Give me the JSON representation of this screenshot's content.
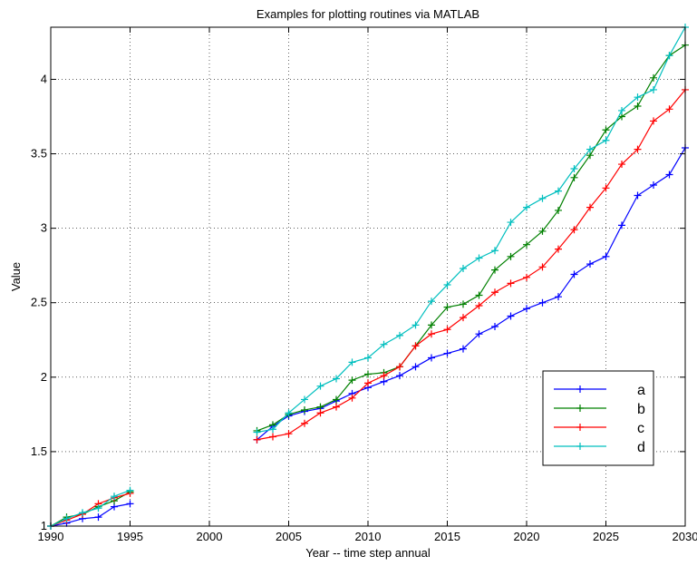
{
  "chart_data": {
    "type": "line",
    "title": "Examples for plotting routines via MATLAB",
    "xlabel": "Year -- time step annual",
    "ylabel": "Value",
    "xlim": [
      1990,
      2030
    ],
    "ylim": [
      1,
      4.35
    ],
    "x_ticks": [
      1990,
      1995,
      2000,
      2005,
      2010,
      2015,
      2020,
      2025,
      2030
    ],
    "y_ticks": [
      1,
      1.5,
      2,
      2.5,
      3,
      3.5,
      4
    ],
    "grid": true,
    "legend_position": "lower-right",
    "marker": "+",
    "series": [
      {
        "name": "a",
        "color": "#0000ff",
        "segments": [
          {
            "x": [
              1990,
              1991,
              1992,
              1993,
              1994,
              1995
            ],
            "y": [
              1.0,
              1.02,
              1.05,
              1.06,
              1.13,
              1.15
            ]
          },
          {
            "x": [
              2003,
              2004,
              2005,
              2006,
              2007,
              2008,
              2009,
              2010,
              2011,
              2012,
              2013,
              2014,
              2015,
              2016,
              2017,
              2018,
              2019,
              2020,
              2021,
              2022,
              2023,
              2024,
              2025,
              2026,
              2027,
              2028,
              2029,
              2030
            ],
            "y": [
              1.58,
              1.67,
              1.74,
              1.77,
              1.79,
              1.84,
              1.89,
              1.93,
              1.97,
              2.01,
              2.07,
              2.13,
              2.16,
              2.19,
              2.29,
              2.34,
              2.41,
              2.46,
              2.5,
              2.54,
              2.69,
              2.76,
              2.81,
              3.02,
              3.22,
              3.29,
              3.36,
              3.54
            ]
          }
        ]
      },
      {
        "name": "b",
        "color": "#008000",
        "segments": [
          {
            "x": [
              1990,
              1991,
              1992,
              1993,
              1994,
              1995
            ],
            "y": [
              1.0,
              1.06,
              1.08,
              1.13,
              1.17,
              1.23
            ]
          },
          {
            "x": [
              2003,
              2004,
              2005,
              2006,
              2007,
              2008,
              2009,
              2010,
              2011,
              2012,
              2013,
              2014,
              2015,
              2016,
              2017,
              2018,
              2019,
              2020,
              2021,
              2022,
              2023,
              2024,
              2025,
              2026,
              2027,
              2028,
              2029,
              2030
            ],
            "y": [
              1.64,
              1.68,
              1.75,
              1.78,
              1.8,
              1.85,
              1.98,
              2.02,
              2.03,
              2.07,
              2.21,
              2.35,
              2.47,
              2.49,
              2.55,
              2.72,
              2.81,
              2.89,
              2.98,
              3.12,
              3.34,
              3.49,
              3.66,
              3.75,
              3.82,
              4.01,
              4.16,
              4.23
            ]
          }
        ]
      },
      {
        "name": "c",
        "color": "#ff0000",
        "segments": [
          {
            "x": [
              1990,
              1991,
              1992,
              1993,
              1994,
              1995
            ],
            "y": [
              1.0,
              1.04,
              1.08,
              1.15,
              1.19,
              1.22
            ]
          },
          {
            "x": [
              2003,
              2004,
              2005,
              2006,
              2007,
              2008,
              2009,
              2010,
              2011,
              2012,
              2013,
              2014,
              2015,
              2016,
              2017,
              2018,
              2019,
              2020,
              2021,
              2022,
              2023,
              2024,
              2025,
              2026,
              2027,
              2028,
              2029,
              2030
            ],
            "y": [
              1.58,
              1.6,
              1.62,
              1.69,
              1.76,
              1.8,
              1.86,
              1.96,
              2.01,
              2.07,
              2.21,
              2.29,
              2.32,
              2.4,
              2.48,
              2.57,
              2.63,
              2.67,
              2.74,
              2.86,
              2.99,
              3.14,
              3.27,
              3.43,
              3.53,
              3.72,
              3.8,
              3.93
            ]
          }
        ]
      },
      {
        "name": "d",
        "color": "#00bfbf",
        "segments": [
          {
            "x": [
              1990,
              1991,
              1992,
              1993,
              1994,
              1995
            ],
            "y": [
              1.0,
              1.05,
              1.09,
              1.12,
              1.2,
              1.24
            ]
          },
          {
            "x": [
              2003,
              2004,
              2005,
              2006,
              2007,
              2008,
              2009,
              2010,
              2011,
              2012,
              2013,
              2014,
              2015,
              2016,
              2017,
              2018,
              2019,
              2020,
              2021,
              2022,
              2023,
              2024,
              2025,
              2026,
              2027,
              2028,
              2029,
              2030
            ],
            "y": [
              1.63,
              1.65,
              1.76,
              1.85,
              1.94,
              1.99,
              2.1,
              2.13,
              2.22,
              2.28,
              2.35,
              2.51,
              2.62,
              2.73,
              2.8,
              2.85,
              3.04,
              3.14,
              3.2,
              3.25,
              3.4,
              3.53,
              3.59,
              3.79,
              3.88,
              3.93,
              4.16,
              4.35
            ]
          }
        ]
      }
    ]
  }
}
